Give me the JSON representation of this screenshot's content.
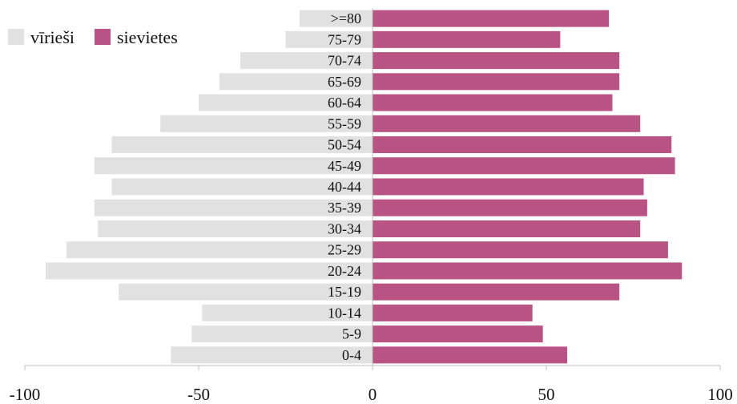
{
  "chart_data": {
    "type": "bar",
    "orientation": "horizontal",
    "layout": "population-pyramid",
    "categories": [
      ">=80",
      "75-79",
      "70-74",
      "65-69",
      "60-64",
      "55-59",
      "50-54",
      "45-49",
      "40-44",
      "35-39",
      "30-34",
      "25-29",
      "20-24",
      "15-19",
      "10-14",
      "5-9",
      "0-4"
    ],
    "series": [
      {
        "name": "vīrieši",
        "color": "#e1e1e1",
        "values": [
          -21,
          -25,
          -38,
          -44,
          -50,
          -61,
          -75,
          -80,
          -75,
          -80,
          -79,
          -88,
          -94,
          -73,
          -49,
          -52,
          -58
        ]
      },
      {
        "name": "sievietes",
        "color": "#b95384",
        "values": [
          68,
          54,
          71,
          71,
          69,
          77,
          86,
          87,
          78,
          79,
          77,
          85,
          89,
          71,
          46,
          49,
          56
        ]
      }
    ],
    "xlim": [
      -100,
      100
    ],
    "x_ticks": [
      "-100",
      "-50",
      "0",
      "50",
      "100"
    ],
    "xlabel": "",
    "ylabel": "",
    "title": "",
    "grid": false,
    "legend_position": "top-left"
  }
}
